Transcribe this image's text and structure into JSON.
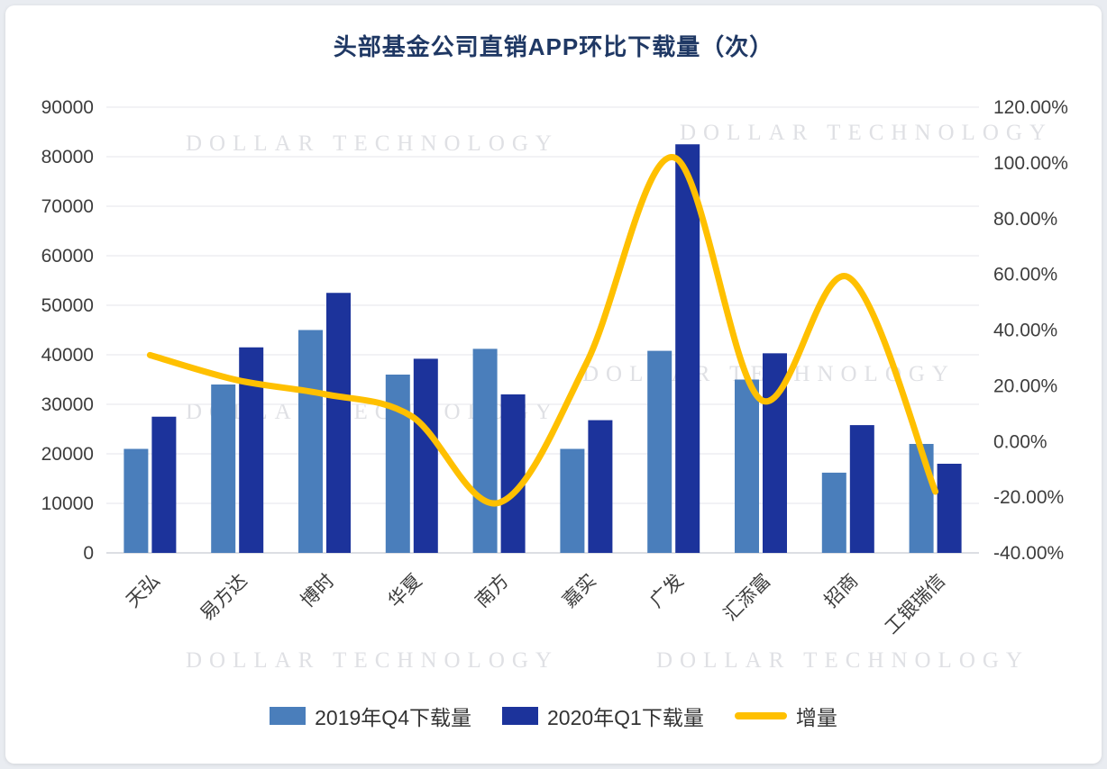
{
  "watermark": {
    "text": "DOLLAR TECHNOLOGY"
  },
  "chart_data": {
    "type": "combo-bar-line",
    "title": "头部基金公司直销APP环比下载量（次）",
    "categories": [
      "天弘",
      "易方达",
      "博时",
      "华夏",
      "南方",
      "嘉实",
      "广发",
      "汇添富",
      "招商",
      "工银瑞信"
    ],
    "series": [
      {
        "name": "2019年Q4下载量",
        "type": "bar",
        "axis": "left",
        "color": "#4A7EBB",
        "values": [
          21000,
          34000,
          45000,
          36000,
          41200,
          21000,
          40800,
          35000,
          16200,
          22000
        ]
      },
      {
        "name": "2020年Q1下载量",
        "type": "bar",
        "axis": "left",
        "color": "#1C339B",
        "values": [
          27500,
          41500,
          52500,
          39200,
          32000,
          26800,
          82500,
          40300,
          25800,
          18000
        ]
      },
      {
        "name": "增量",
        "type": "line",
        "axis": "right",
        "color": "#FFC000",
        "values": [
          31,
          22,
          17,
          9,
          -22,
          28,
          102,
          15,
          59,
          -18
        ]
      }
    ],
    "axes": {
      "left": {
        "min": 0,
        "max": 90000,
        "ticks": [
          {
            "value": 0,
            "label": "0"
          },
          {
            "value": 10000,
            "label": "10000"
          },
          {
            "value": 20000,
            "label": "20000"
          },
          {
            "value": 30000,
            "label": "30000"
          },
          {
            "value": 40000,
            "label": "40000"
          },
          {
            "value": 50000,
            "label": "50000"
          },
          {
            "value": 60000,
            "label": "60000"
          },
          {
            "value": 70000,
            "label": "70000"
          },
          {
            "value": 80000,
            "label": "80000"
          },
          {
            "value": 90000,
            "label": "90000"
          }
        ]
      },
      "right": {
        "min": -40,
        "max": 120,
        "ticks": [
          {
            "value": 120,
            "label": "120.00%"
          },
          {
            "value": 100,
            "label": "100.00%"
          },
          {
            "value": 80,
            "label": "80.00%"
          },
          {
            "value": 60,
            "label": "60.00%"
          },
          {
            "value": 40,
            "label": "40.00%"
          },
          {
            "value": 20,
            "label": "20.00%"
          },
          {
            "value": 0,
            "label": "0.00%"
          },
          {
            "value": -20,
            "label": "-20.00%"
          },
          {
            "value": -40,
            "label": "-40.00%"
          }
        ]
      }
    },
    "grid": true,
    "legend_position": "bottom"
  }
}
